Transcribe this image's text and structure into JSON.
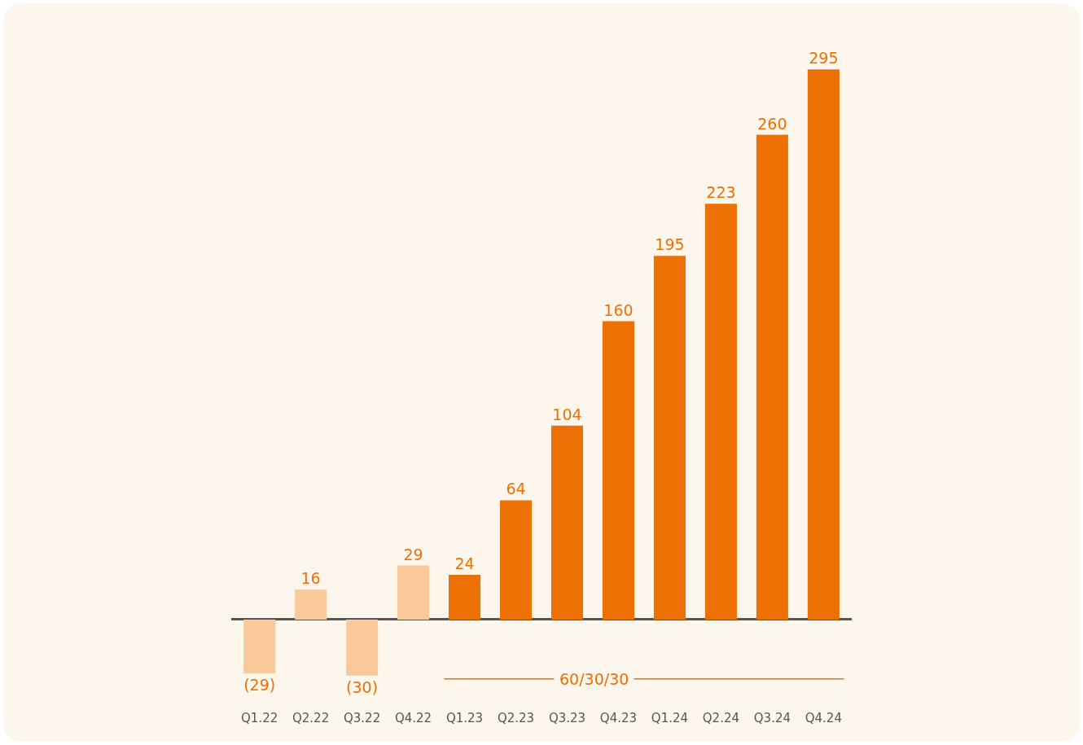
{
  "chart_data": {
    "type": "bar",
    "categories": [
      "Q1.22",
      "Q2.22",
      "Q3.22",
      "Q4.22",
      "Q1.23",
      "Q2.23",
      "Q3.23",
      "Q4.23",
      "Q1.24",
      "Q2.24",
      "Q3.24",
      "Q4.24"
    ],
    "values": [
      -29,
      16,
      -30,
      29,
      24,
      64,
      104,
      160,
      195,
      223,
      260,
      295
    ],
    "colors": [
      "#f9c99a",
      "#f9c99a",
      "#f9c99a",
      "#f9c99a",
      "#ec7004",
      "#ec7004",
      "#ec7004",
      "#ec7004",
      "#ec7004",
      "#ec7004",
      "#ec7004",
      "#ec7004"
    ],
    "value_labels": [
      "(29)",
      "16",
      "(30)",
      "29",
      "24",
      "64",
      "104",
      "160",
      "195",
      "223",
      "260",
      "295"
    ],
    "annotations": [
      "60/30/30"
    ]
  }
}
